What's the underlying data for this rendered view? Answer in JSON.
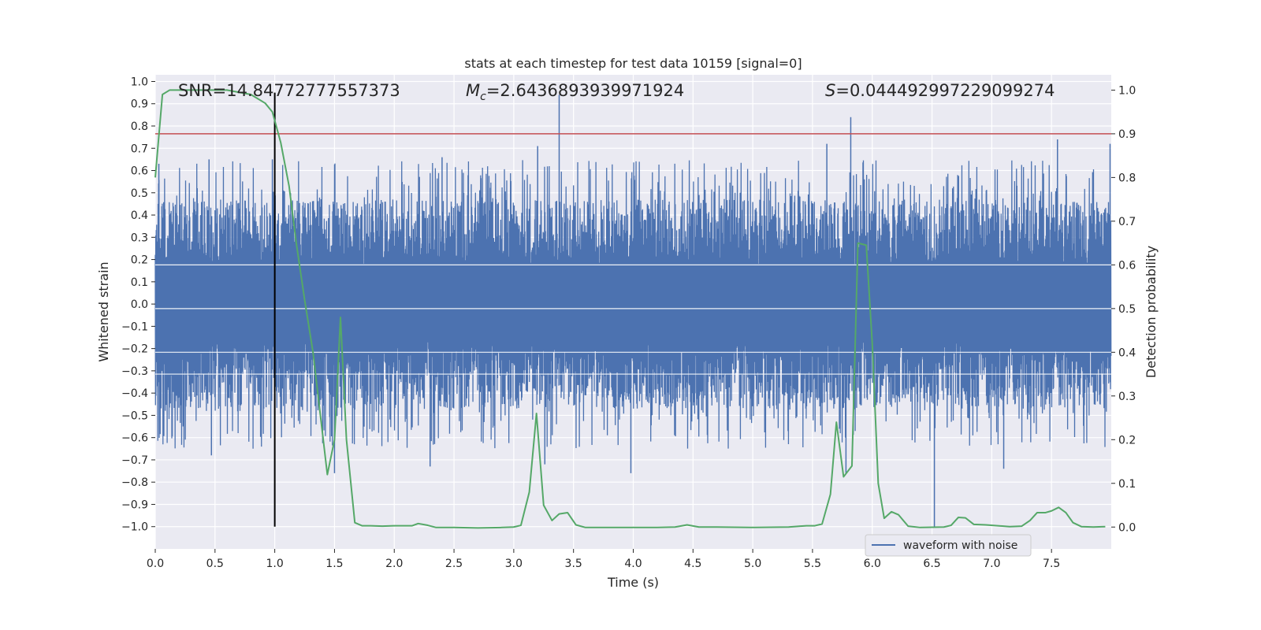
{
  "chart_data": {
    "type": "line",
    "title": "stats at each timestep for test data 10159 [signal=0]",
    "xlabel": "Time (s)",
    "ylabel": "Whitened strain",
    "ylabel_right": "Detection probability",
    "xlim": [
      0,
      8.0
    ],
    "ylim": [
      -1.1,
      1.03
    ],
    "ylim_right": [
      -0.05,
      1.035
    ],
    "x_ticks": [
      "0.0",
      "0.5",
      "1.0",
      "1.5",
      "2.0",
      "2.5",
      "3.0",
      "3.5",
      "4.0",
      "4.5",
      "5.0",
      "5.5",
      "6.0",
      "6.5",
      "7.0",
      "7.5"
    ],
    "y_ticks": [
      "1.0",
      "0.9",
      "0.8",
      "0.7",
      "0.6",
      "0.5",
      "0.4",
      "0.3",
      "0.2",
      "0.1",
      "0.0",
      "−0.1",
      "−0.2",
      "−0.3",
      "−0.4",
      "−0.5",
      "−0.6",
      "−0.7",
      "−0.8",
      "−0.9",
      "−1.0"
    ],
    "y_ticks_right": [
      "1.0",
      "0.9",
      "0.8",
      "0.7",
      "0.6",
      "0.5",
      "0.4",
      "0.3",
      "0.2",
      "0.1",
      "0.0"
    ],
    "grid": true,
    "legend_position": "bottom-right",
    "annotations": {
      "snr": "SNR=14.84772777557373",
      "mc_symbol": "M",
      "mc_sub": "c",
      "mc_value": "=2.6436893939971924",
      "s_symbol": "S",
      "s_value": "=0.044492997229099274"
    },
    "colors": {
      "background": "#eaeaf2",
      "waveform": "#4c72b0",
      "probability": "#55a868",
      "threshold": "#c44e52",
      "marker": "#000000",
      "grid": "#ffffff"
    },
    "threshold_right": 0.9,
    "vertical_marker": {
      "x": 1.0,
      "y_from": -1.0,
      "y_to": 0.95
    },
    "series": [
      {
        "name": "waveform with noise",
        "kind": "noise",
        "axis": "left",
        "sample_rate": 512,
        "envelope": [
          0.34,
          -0.34
        ],
        "peaks": [
          {
            "x": 0.03,
            "y": 0.63
          },
          {
            "x": 0.45,
            "y": 0.65
          },
          {
            "x": 0.98,
            "y": 0.65
          },
          {
            "x": 2.4,
            "y": 0.66
          },
          {
            "x": 3.38,
            "y": 0.94
          },
          {
            "x": 3.2,
            "y": 0.71
          },
          {
            "x": 5.82,
            "y": 0.84
          },
          {
            "x": 5.62,
            "y": 0.72
          },
          {
            "x": 7.55,
            "y": 0.74
          },
          {
            "x": 7.99,
            "y": 0.72
          },
          {
            "x": 0.47,
            "y": -0.68
          },
          {
            "x": 1.5,
            "y": -0.76
          },
          {
            "x": 2.3,
            "y": -0.73
          },
          {
            "x": 3.98,
            "y": -0.76
          },
          {
            "x": 5.78,
            "y": -0.76
          },
          {
            "x": 6.52,
            "y": -1.0
          },
          {
            "x": 7.1,
            "y": -0.74
          },
          {
            "x": 3.26,
            "y": -0.72
          }
        ]
      },
      {
        "name": "",
        "kind": "line",
        "axis": "right",
        "points": [
          [
            0.0,
            0.8
          ],
          [
            0.06,
            0.99
          ],
          [
            0.12,
            1.0
          ],
          [
            0.2,
            1.0
          ],
          [
            0.4,
            1.0
          ],
          [
            0.6,
            1.0
          ],
          [
            0.8,
            0.99
          ],
          [
            0.92,
            0.97
          ],
          [
            0.98,
            0.95
          ],
          [
            1.05,
            0.88
          ],
          [
            1.12,
            0.78
          ],
          [
            1.18,
            0.65
          ],
          [
            1.25,
            0.52
          ],
          [
            1.32,
            0.4
          ],
          [
            1.38,
            0.26
          ],
          [
            1.44,
            0.12
          ],
          [
            1.5,
            0.2
          ],
          [
            1.55,
            0.48
          ],
          [
            1.6,
            0.2
          ],
          [
            1.67,
            0.01
          ],
          [
            1.73,
            0.003
          ],
          [
            1.8,
            0.003
          ],
          [
            1.9,
            0.002
          ],
          [
            2.0,
            0.003
          ],
          [
            2.15,
            0.003
          ],
          [
            2.2,
            0.008
          ],
          [
            2.28,
            0.004
          ],
          [
            2.35,
            -0.001
          ],
          [
            2.5,
            -0.001
          ],
          [
            2.7,
            -0.002
          ],
          [
            2.9,
            -0.001
          ],
          [
            3.0,
            0.0
          ],
          [
            3.06,
            0.004
          ],
          [
            3.13,
            0.08
          ],
          [
            3.19,
            0.26
          ],
          [
            3.25,
            0.05
          ],
          [
            3.32,
            0.015
          ],
          [
            3.38,
            0.03
          ],
          [
            3.45,
            0.033
          ],
          [
            3.52,
            0.005
          ],
          [
            3.6,
            -0.001
          ],
          [
            3.8,
            -0.001
          ],
          [
            4.0,
            -0.001
          ],
          [
            4.2,
            -0.001
          ],
          [
            4.35,
            0.0
          ],
          [
            4.45,
            0.005
          ],
          [
            4.55,
            0.0
          ],
          [
            4.7,
            0.0
          ],
          [
            5.0,
            -0.001
          ],
          [
            5.3,
            0.0
          ],
          [
            5.45,
            0.003
          ],
          [
            5.52,
            0.003
          ],
          [
            5.58,
            0.007
          ],
          [
            5.65,
            0.075
          ],
          [
            5.7,
            0.24
          ],
          [
            5.76,
            0.115
          ],
          [
            5.83,
            0.14
          ],
          [
            5.88,
            0.65
          ],
          [
            5.95,
            0.645
          ],
          [
            6.0,
            0.42
          ],
          [
            6.05,
            0.1
          ],
          [
            6.1,
            0.02
          ],
          [
            6.16,
            0.035
          ],
          [
            6.22,
            0.028
          ],
          [
            6.3,
            0.002
          ],
          [
            6.4,
            -0.001
          ],
          [
            6.6,
            0.0
          ],
          [
            6.66,
            0.004
          ],
          [
            6.72,
            0.022
          ],
          [
            6.78,
            0.021
          ],
          [
            6.85,
            0.006
          ],
          [
            6.95,
            0.005
          ],
          [
            7.05,
            0.003
          ],
          [
            7.15,
            0.001
          ],
          [
            7.25,
            0.002
          ],
          [
            7.32,
            0.015
          ],
          [
            7.38,
            0.033
          ],
          [
            7.45,
            0.033
          ],
          [
            7.5,
            0.037
          ],
          [
            7.56,
            0.045
          ],
          [
            7.62,
            0.033
          ],
          [
            7.68,
            0.01
          ],
          [
            7.75,
            0.001
          ],
          [
            7.85,
            0.0
          ],
          [
            7.95,
            0.001
          ]
        ]
      }
    ]
  }
}
